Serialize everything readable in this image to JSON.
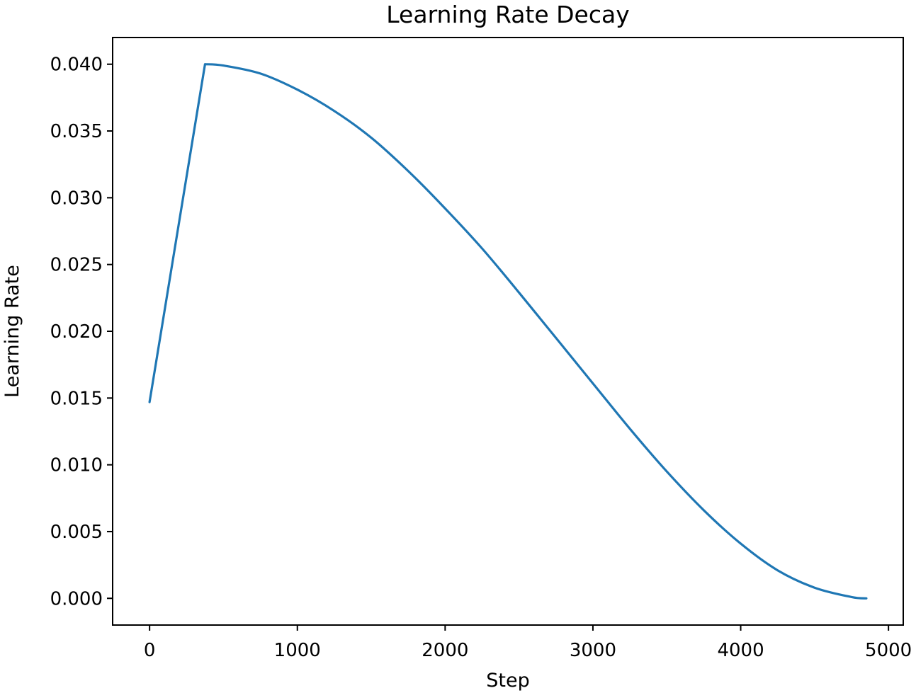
{
  "chart_data": {
    "type": "line",
    "title": "Learning Rate Decay",
    "xlabel": "Step",
    "ylabel": "Learning Rate",
    "xlim": [
      -250,
      5100
    ],
    "ylim": [
      -0.002,
      0.042
    ],
    "xticks": [
      0,
      1000,
      2000,
      3000,
      4000,
      5000
    ],
    "xtick_labels": [
      "0",
      "1000",
      "2000",
      "3000",
      "4000",
      "5000"
    ],
    "yticks": [
      0.0,
      0.005,
      0.01,
      0.015,
      0.02,
      0.025,
      0.03,
      0.035,
      0.04
    ],
    "ytick_labels": [
      "0.000",
      "0.005",
      "0.010",
      "0.015",
      "0.020",
      "0.025",
      "0.030",
      "0.035",
      "0.040"
    ],
    "grid": false,
    "legend": "none",
    "series": [
      {
        "color": "#1f77b4",
        "x": [
          0,
          375,
          500,
          750,
          1000,
          1250,
          1500,
          1750,
          2000,
          2250,
          2500,
          2750,
          3000,
          3250,
          3500,
          3750,
          4000,
          4250,
          4500,
          4750,
          4850
        ],
        "y": [
          0.0147,
          0.04,
          0.0399,
          0.0393,
          0.0381,
          0.0365,
          0.0345,
          0.032,
          0.0292,
          0.0262,
          0.0229,
          0.0195,
          0.0161,
          0.0127,
          0.0095,
          0.0066,
          0.0041,
          0.0021,
          0.0008,
          0.0001,
          0.0
        ]
      }
    ]
  }
}
